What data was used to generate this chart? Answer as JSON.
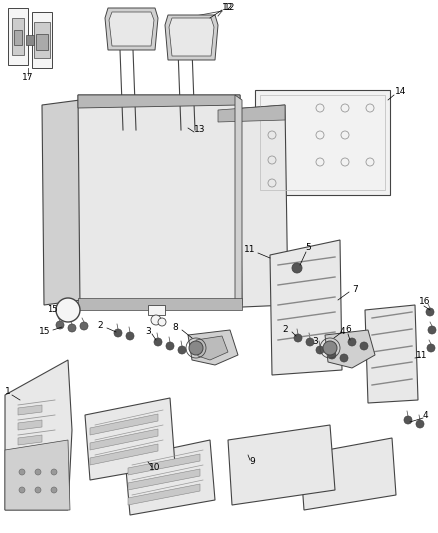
{
  "bg_color": "#ffffff",
  "outline_color": "#444444",
  "fill_light": "#e8e8e8",
  "fill_mid": "#d0d0d0",
  "fill_dark": "#b8b8b8",
  "fill_white": "#f5f5f5",
  "hatch_color": "#aaaaaa",
  "bolt_color": "#555555",
  "label_color": "#000000",
  "label_fs": 6.5,
  "leader_lw": 0.5,
  "part_lw": 0.7
}
